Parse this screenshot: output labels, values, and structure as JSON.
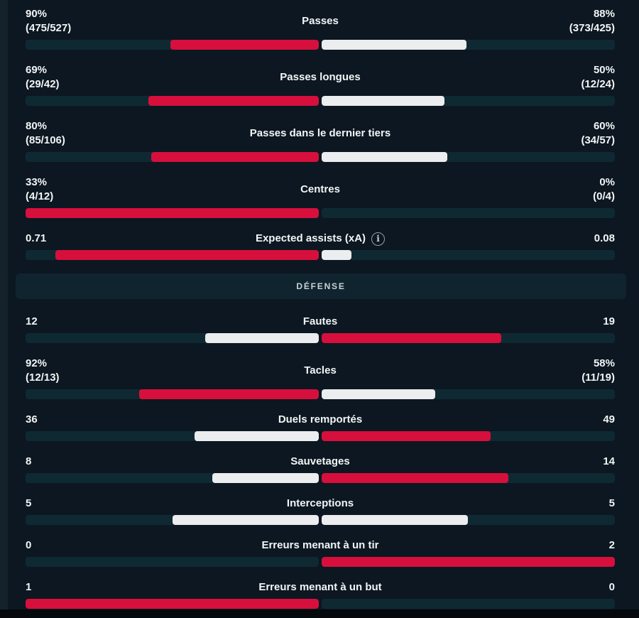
{
  "colors": {
    "background": "#0c1721",
    "track": "#0f2933",
    "accent_red": "#d60f3c",
    "bar_white": "#ebedee",
    "text": "#f2f5f6",
    "section_band_bg": "#10242f",
    "section_band_text": "#c9d2d8"
  },
  "rows": [
    {
      "type": "stat",
      "label": "Passes",
      "left_value": "90%",
      "left_detail": "(475/527)",
      "right_value": "88%",
      "right_detail": "(373/425)",
      "left_pct": 50.6,
      "right_pct": 49.4,
      "left_style": "accent",
      "right_style": "light"
    },
    {
      "type": "stat",
      "label": "Passes longues",
      "left_value": "69%",
      "left_detail": "(29/42)",
      "right_value": "50%",
      "right_detail": "(12/24)",
      "left_pct": 58.0,
      "right_pct": 42.0,
      "left_style": "accent",
      "right_style": "light"
    },
    {
      "type": "stat",
      "label": "Passes dans le dernier tiers",
      "left_value": "80%",
      "left_detail": "(85/106)",
      "right_value": "60%",
      "right_detail": "(34/57)",
      "left_pct": 57.1,
      "right_pct": 42.9,
      "left_style": "accent",
      "right_style": "light"
    },
    {
      "type": "stat",
      "label": "Centres",
      "left_value": "33%",
      "left_detail": "(4/12)",
      "right_value": "0%",
      "right_detail": "(0/4)",
      "left_pct": 100,
      "right_pct": 0,
      "left_style": "accent",
      "right_style": "none"
    },
    {
      "type": "stat",
      "label": "Expected assists (xA)",
      "info_glyph": "i",
      "left_value": "0.71",
      "right_value": "0.08",
      "left_pct": 89.9,
      "right_pct": 10.1,
      "left_style": "accent",
      "right_style": "light"
    },
    {
      "type": "section",
      "label": "DÉFENSE"
    },
    {
      "type": "stat",
      "label": "Fautes",
      "left_value": "12",
      "right_value": "19",
      "left_pct": 38.7,
      "right_pct": 61.3,
      "left_style": "light",
      "right_style": "accent"
    },
    {
      "type": "stat",
      "label": "Tacles",
      "left_value": "92%",
      "left_detail": "(12/13)",
      "right_value": "58%",
      "right_detail": "(11/19)",
      "left_pct": 61.3,
      "right_pct": 38.7,
      "left_style": "accent",
      "right_style": "light"
    },
    {
      "type": "stat",
      "label": "Duels remportés",
      "left_value": "36",
      "right_value": "49",
      "left_pct": 42.4,
      "right_pct": 57.6,
      "left_style": "light",
      "right_style": "accent"
    },
    {
      "type": "stat",
      "label": "Sauvetages",
      "left_value": "8",
      "right_value": "14",
      "left_pct": 36.4,
      "right_pct": 63.6,
      "left_style": "light",
      "right_style": "accent"
    },
    {
      "type": "stat",
      "label": "Interceptions",
      "left_value": "5",
      "right_value": "5",
      "left_pct": 49.8,
      "right_pct": 49.8,
      "left_style": "light",
      "right_style": "light"
    },
    {
      "type": "stat",
      "label": "Erreurs menant à un tir",
      "left_value": "0",
      "right_value": "2",
      "left_pct": 0,
      "right_pct": 100,
      "left_style": "none",
      "right_style": "accent"
    },
    {
      "type": "stat",
      "label": "Erreurs menant à un but",
      "left_value": "1",
      "right_value": "0",
      "left_pct": 100,
      "right_pct": 0,
      "left_style": "accent",
      "right_style": "none"
    }
  ]
}
